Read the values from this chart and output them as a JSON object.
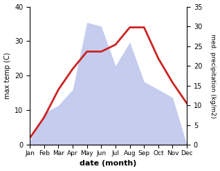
{
  "months": [
    "Jan",
    "Feb",
    "Mar",
    "Apr",
    "May",
    "Jun",
    "Jul",
    "Aug",
    "Sep",
    "Oct",
    "Nov",
    "Dec"
  ],
  "temperature": [
    2,
    8,
    16,
    22,
    27,
    27,
    29,
    34,
    34,
    25,
    18,
    12
  ],
  "precipitation": [
    1,
    8,
    10,
    14,
    31,
    30,
    20,
    26,
    16,
    14,
    12,
    0
  ],
  "temp_color": "#cc2222",
  "precip_fill_color": "#c5ccee",
  "left_ylabel": "max temp (C)",
  "right_ylabel": "med. precipitation (kg/m2)",
  "xlabel": "date (month)",
  "left_ylim": [
    0,
    40
  ],
  "right_ylim": [
    0,
    35
  ],
  "left_yticks": [
    0,
    10,
    20,
    30,
    40
  ],
  "right_yticks": [
    0,
    5,
    10,
    15,
    20,
    25,
    30,
    35
  ],
  "bg_color": "#ffffff",
  "line_width": 2.0
}
